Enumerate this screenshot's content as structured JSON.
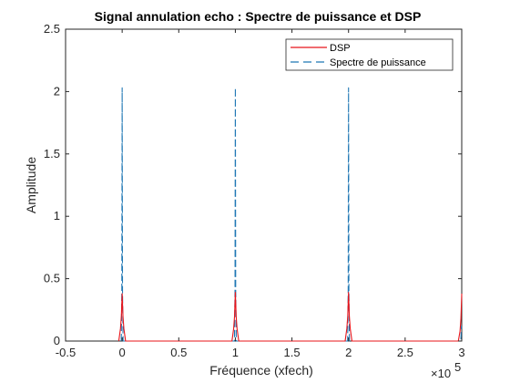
{
  "chart_data": {
    "type": "line",
    "title": "Signal annulation echo : Spectre de puissance et DSP",
    "xlabel": "Fréquence (xfech)",
    "ylabel": "Amplitude",
    "xlim": [
      -50000,
      300000
    ],
    "ylim": [
      0,
      2.5
    ],
    "x_exponent_label": "×10",
    "x_exponent_power": "5",
    "xticks": [
      -50000,
      0,
      50000,
      100000,
      150000,
      200000,
      250000,
      300000
    ],
    "xtick_labels": [
      "-0.5",
      "0",
      "0.5",
      "1",
      "1.5",
      "2",
      "2.5",
      "3"
    ],
    "yticks": [
      0,
      0.5,
      1,
      1.5,
      2,
      2.5
    ],
    "ytick_labels": [
      "0",
      "0.5",
      "1",
      "1.5",
      "2",
      "2.5"
    ],
    "grid": false,
    "legend_position": "top-right",
    "colors": {
      "dsp": "#e8141a",
      "spectre": "#1f77b4"
    },
    "series": [
      {
        "name": "DSP",
        "style": "solid",
        "x": [
          -3000,
          -1500,
          -700,
          0,
          700,
          1500,
          3000,
          97000,
          98500,
          99300,
          100000,
          100700,
          101500,
          103000,
          197000,
          198500,
          199300,
          200000,
          200700,
          201500,
          203000,
          297000,
          298500,
          299300,
          300000
        ],
        "y": [
          0,
          0.1,
          0.2,
          0.38,
          0.2,
          0.1,
          0,
          0,
          0.1,
          0.2,
          0.39,
          0.2,
          0.1,
          0,
          0,
          0.1,
          0.2,
          0.39,
          0.2,
          0.1,
          0,
          0,
          0.08,
          0.18,
          0.38
        ]
      },
      {
        "name": "Spectre de puissance",
        "style": "dashed",
        "x": [
          -800,
          -300,
          0,
          300,
          800,
          99200,
          99700,
          100000,
          100300,
          100800,
          199200,
          199700,
          200000,
          200300,
          200800,
          299200,
          299700,
          300000
        ],
        "y": [
          0,
          0.4,
          2.03,
          0.4,
          0,
          0,
          0.4,
          2.03,
          0.4,
          0,
          0,
          0.4,
          2.03,
          0.4,
          0,
          0,
          0.12,
          0.12
        ]
      }
    ]
  }
}
